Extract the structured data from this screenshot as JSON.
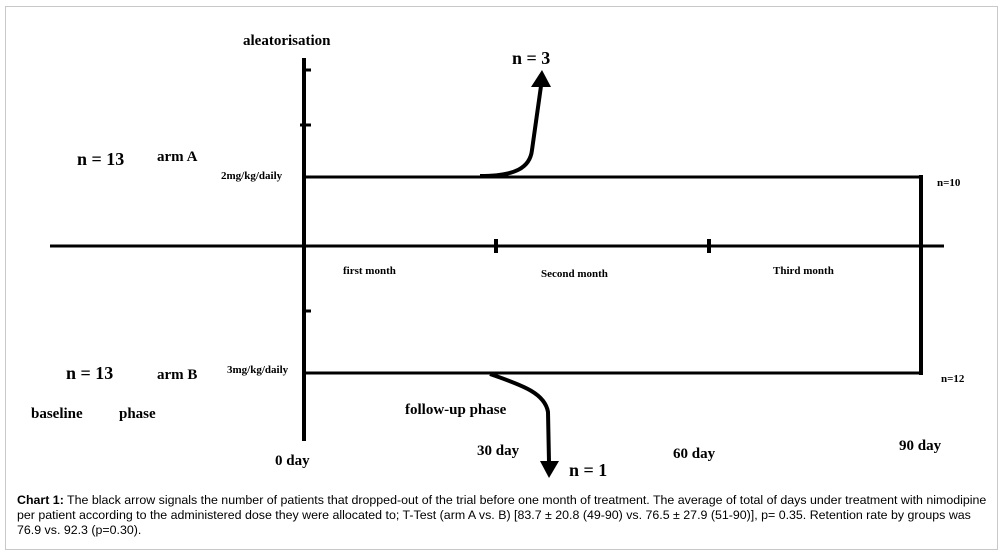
{
  "labels": {
    "aleatorisation": "aleatorisation",
    "n_dropout_a": "n = 3",
    "n_arm_a": "n = 13",
    "arm_a": "arm A",
    "dose_a": "2mg/kg/daily",
    "n_end_a": "n=10",
    "first_month": "first month",
    "second_month": "Second month",
    "third_month": "Third month",
    "n_arm_b": "n = 13",
    "arm_b": "arm B",
    "dose_b": "3mg/kg/daily",
    "n_end_b": "n=12",
    "baseline": "baseline",
    "phase": "phase",
    "followup": "follow-up phase",
    "day0": "0 day",
    "day30": "30 day",
    "n_dropout_b": "n = 1",
    "day60": "60 day",
    "day90": "90 day"
  },
  "caption": {
    "prefix": "Chart 1:",
    "text": " The black arrow signals the number of patients that dropped-out of the trial before one month of treatment. The average of total of days under treatment with nimodipine per patient according to the administered dose they were allocated to; T-Test (arm A vs. B) [83.7 ± 20.8 (49-90) vs. 76.5 ± 27.9 (51-90)], p= 0.35. Retention rate by groups was 76.9 vs. 92.3 (p=0.30)."
  }
}
